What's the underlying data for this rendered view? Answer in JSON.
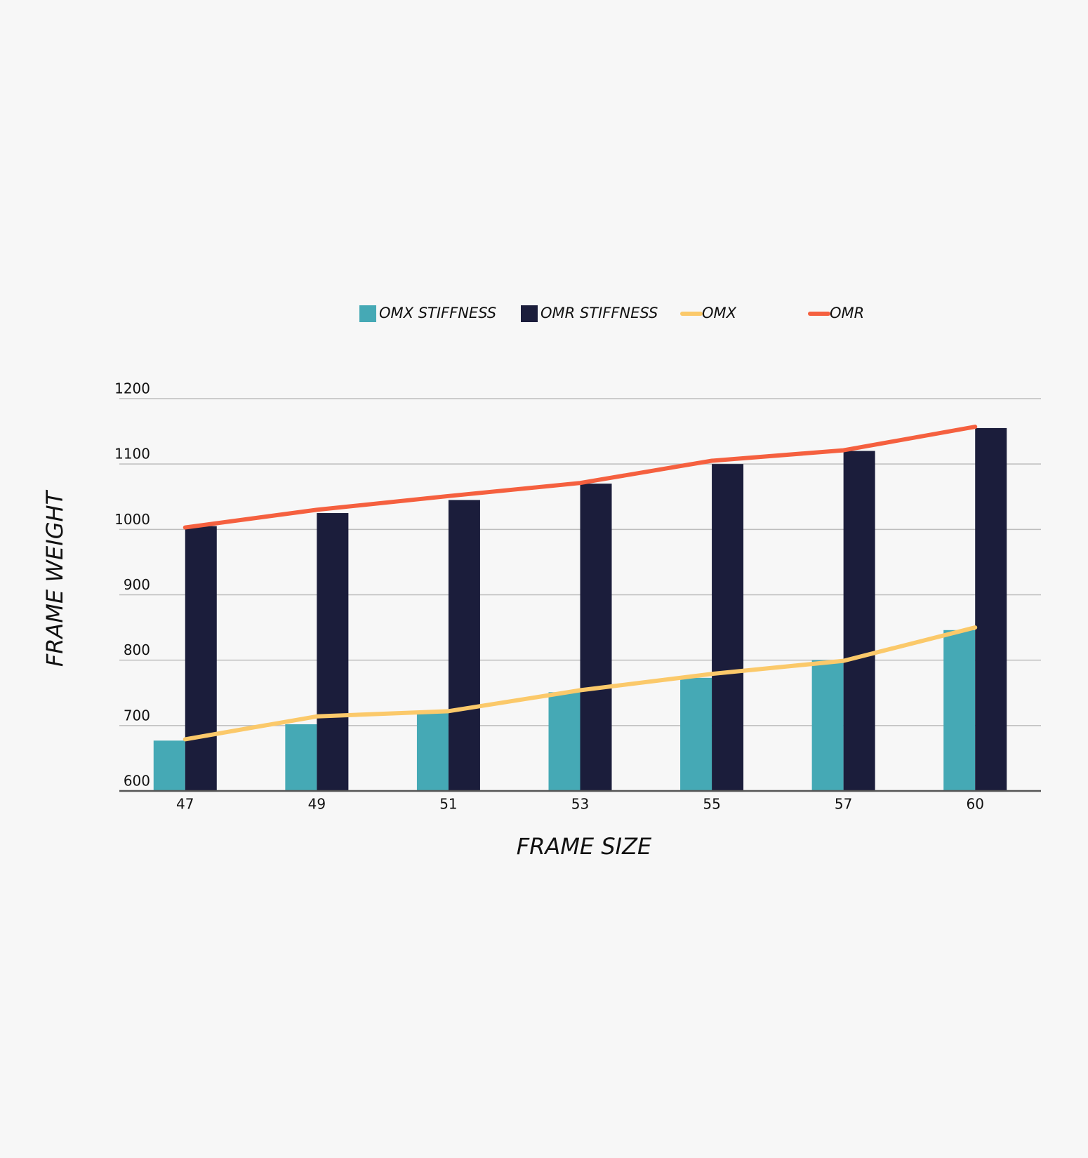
{
  "chart_data": {
    "type": "bar",
    "x_label": "FRAME SIZE",
    "y_label": "FRAME WEIGHT",
    "categories": [
      "47",
      "49",
      "51",
      "53",
      "55",
      "57",
      "60"
    ],
    "series": [
      {
        "name": "OMX STIFFNESS",
        "type": "bar",
        "color": "#45a9b5",
        "values": [
          677,
          702,
          719,
          751,
          773,
          800,
          846
        ]
      },
      {
        "name": "OMR STIFFNESS",
        "type": "bar",
        "color": "#1b1d3b",
        "values": [
          1005,
          1025,
          1045,
          1070,
          1100,
          1120,
          1155
        ]
      },
      {
        "name": "OMX",
        "type": "line",
        "color": "#fbc96a",
        "values": [
          679,
          714,
          722,
          754,
          779,
          799,
          850
        ]
      },
      {
        "name": "OMR",
        "type": "line",
        "color": "#f5603f",
        "values": [
          1003,
          1030,
          1051,
          1071,
          1105,
          1121,
          1157
        ]
      }
    ],
    "ylim": [
      600,
      1200
    ],
    "yticks": [
      600,
      700,
      800,
      900,
      1000,
      1100,
      1200
    ],
    "grid": true,
    "legend": "top"
  }
}
